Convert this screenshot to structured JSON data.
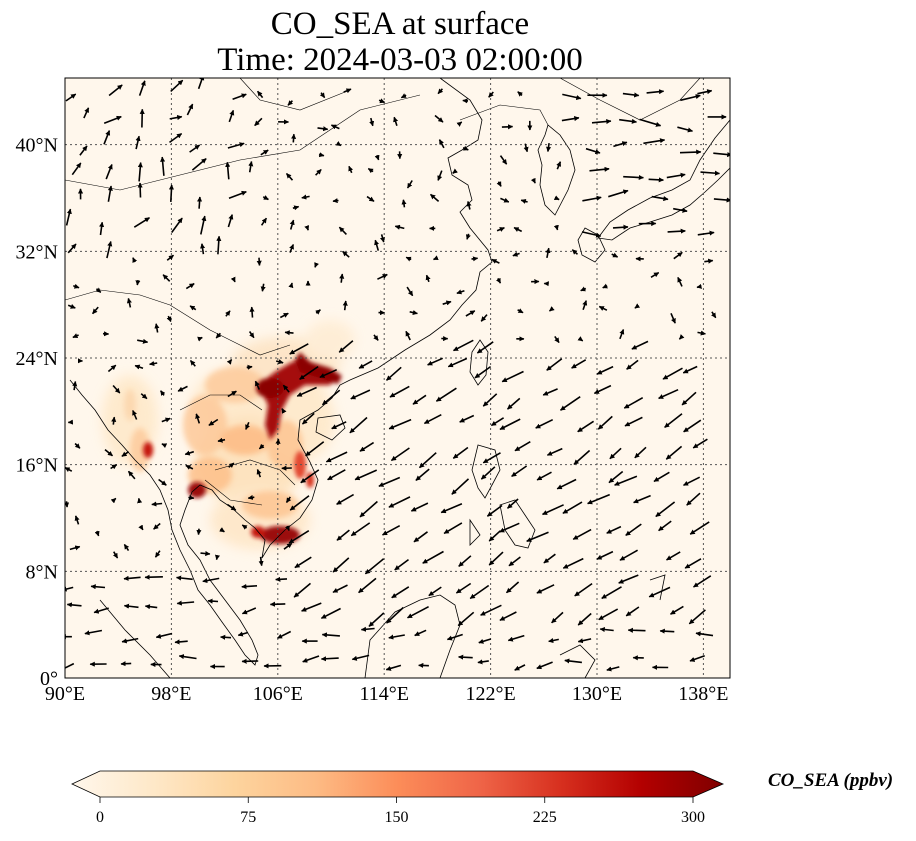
{
  "title": {
    "line1": "CO_SEA at surface",
    "line2": "Time: 2024-03-03 02:00:00"
  },
  "map": {
    "lon_range": [
      90,
      140
    ],
    "lat_range": [
      0,
      45
    ],
    "lon_ticks": [
      90,
      98,
      106,
      114,
      122,
      130,
      138
    ],
    "lat_ticks": [
      0,
      8,
      16,
      24,
      32,
      40
    ],
    "lon_tick_labels": [
      "90°E",
      "98°E",
      "106°E",
      "114°E",
      "122°E",
      "130°E",
      "138°E"
    ],
    "lat_tick_labels": [
      "0°",
      "8°N",
      "16°N",
      "24°N",
      "32°N",
      "40°N"
    ],
    "gridlines": true
  },
  "colorbar": {
    "label": "CO_SEA (ppbv)",
    "min": 0,
    "max": 300,
    "ticks": [
      0,
      75,
      150,
      225,
      300
    ],
    "tick_labels": [
      "0",
      "75",
      "150",
      "225",
      "300"
    ],
    "extend": "both",
    "colormap": [
      "#fff7ec",
      "#fee8c8",
      "#fdd49e",
      "#fdbb84",
      "#fc8d59",
      "#ef6548",
      "#d7301f",
      "#b30000",
      "#7f0000"
    ]
  }
}
